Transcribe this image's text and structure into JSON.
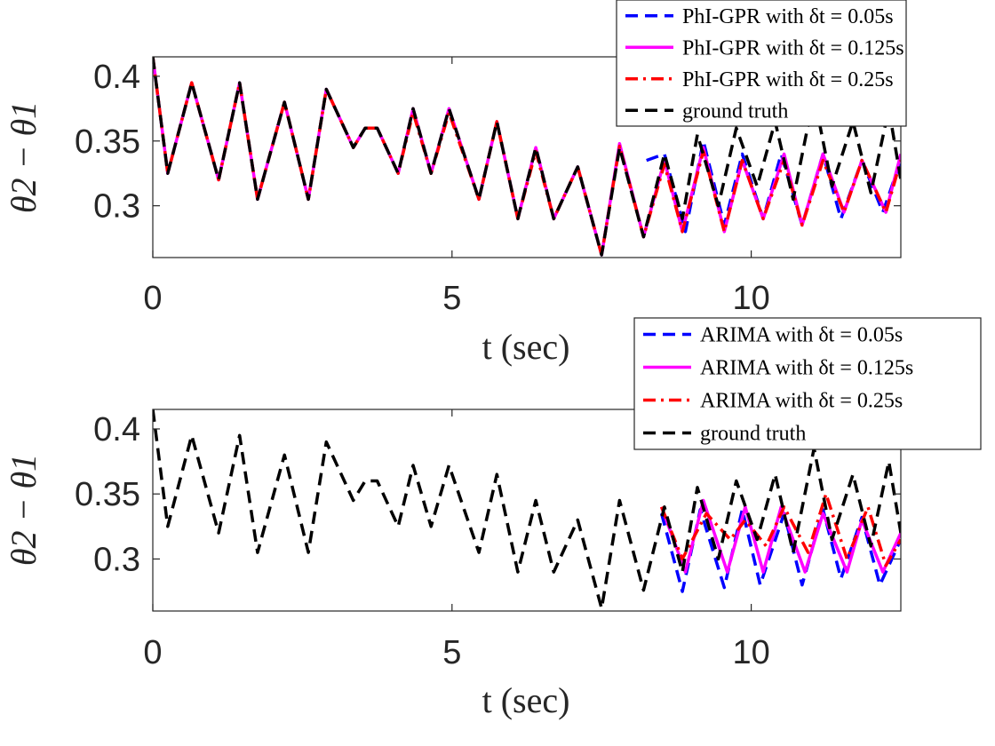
{
  "chart_data": [
    {
      "type": "line",
      "title": "",
      "xlabel": "t (sec)",
      "ylabel": "θ2 − θ1",
      "xlim": [
        0,
        12.5
      ],
      "ylim": [
        0.26,
        0.415
      ],
      "xticks": [
        0,
        5,
        10
      ],
      "yticks": [
        0.3,
        0.35,
        0.4
      ],
      "xtick_labels": [
        "0",
        "5",
        "10"
      ],
      "ytick_labels": [
        "0.3",
        "0.35",
        "0.4"
      ],
      "legend_position": "top-right",
      "series": [
        {
          "name": "PhI-GPR with δt = 0.05s",
          "color": "#0000ff",
          "style": "dashed",
          "x": [
            8.25,
            8.55,
            8.9,
            9.2,
            9.55,
            9.85,
            10.2,
            10.5,
            10.85,
            11.2,
            11.5,
            11.85,
            12.2,
            12.5
          ],
          "y": [
            0.335,
            0.34,
            0.28,
            0.35,
            0.285,
            0.34,
            0.29,
            0.34,
            0.285,
            0.34,
            0.29,
            0.335,
            0.295,
            0.335
          ]
        },
        {
          "name": "PhI-GPR with δt = 0.125s",
          "color": "#ff00ff",
          "style": "solid",
          "x": [
            0,
            0.25,
            0.65,
            1.1,
            1.45,
            1.75,
            2.2,
            2.6,
            2.9,
            3.35,
            3.55,
            3.75,
            4.1,
            4.35,
            4.65,
            4.95,
            5.45,
            5.75,
            6.1,
            6.4,
            6.7,
            7.1,
            7.5,
            7.8,
            8.2,
            8.55,
            8.85,
            9.2,
            9.55,
            9.85,
            10.2,
            10.55,
            10.85,
            11.2,
            11.55,
            11.85,
            12.25,
            12.5
          ],
          "y": [
            0.415,
            0.325,
            0.395,
            0.32,
            0.395,
            0.305,
            0.38,
            0.305,
            0.39,
            0.345,
            0.36,
            0.36,
            0.325,
            0.375,
            0.325,
            0.375,
            0.305,
            0.365,
            0.29,
            0.345,
            0.29,
            0.33,
            0.262,
            0.348,
            0.276,
            0.335,
            0.28,
            0.345,
            0.28,
            0.335,
            0.29,
            0.34,
            0.285,
            0.34,
            0.295,
            0.335,
            0.295,
            0.34
          ]
        },
        {
          "name": "PhI-GPR with δt = 0.25s",
          "color": "#ff0000",
          "style": "dashdot",
          "x": [
            0,
            0.25,
            0.65,
            1.1,
            1.45,
            1.75,
            2.2,
            2.6,
            2.9,
            3.35,
            3.55,
            3.75,
            4.1,
            4.35,
            4.65,
            4.95,
            5.45,
            5.75,
            6.1,
            6.4,
            6.7,
            7.1,
            7.5,
            7.8,
            8.2,
            8.55,
            8.85,
            9.2,
            9.55,
            9.85,
            10.2,
            10.55,
            10.85,
            11.2,
            11.55,
            11.85,
            12.25,
            12.5
          ],
          "y": [
            0.415,
            0.325,
            0.395,
            0.32,
            0.395,
            0.305,
            0.38,
            0.305,
            0.39,
            0.345,
            0.36,
            0.36,
            0.325,
            0.372,
            0.325,
            0.372,
            0.305,
            0.365,
            0.29,
            0.342,
            0.29,
            0.33,
            0.262,
            0.346,
            0.276,
            0.332,
            0.28,
            0.342,
            0.28,
            0.335,
            0.29,
            0.335,
            0.285,
            0.335,
            0.295,
            0.335,
            0.295,
            0.335
          ]
        },
        {
          "name": "ground truth",
          "color": "#000000",
          "style": "dashed",
          "x": [
            0,
            0.25,
            0.65,
            1.1,
            1.45,
            1.75,
            2.2,
            2.6,
            2.9,
            3.35,
            3.55,
            3.75,
            4.1,
            4.35,
            4.65,
            4.95,
            5.45,
            5.75,
            6.1,
            6.4,
            6.7,
            7.1,
            7.5,
            7.8,
            8.2,
            8.55,
            8.85,
            9.1,
            9.45,
            9.75,
            10.1,
            10.4,
            10.7,
            11.05,
            11.35,
            11.7,
            12.0,
            12.3,
            12.5
          ],
          "y": [
            0.415,
            0.325,
            0.395,
            0.32,
            0.395,
            0.305,
            0.38,
            0.305,
            0.39,
            0.345,
            0.36,
            0.36,
            0.325,
            0.375,
            0.325,
            0.375,
            0.305,
            0.365,
            0.29,
            0.345,
            0.29,
            0.33,
            0.262,
            0.345,
            0.276,
            0.34,
            0.29,
            0.355,
            0.3,
            0.36,
            0.315,
            0.365,
            0.305,
            0.385,
            0.315,
            0.365,
            0.31,
            0.375,
            0.32
          ]
        }
      ]
    },
    {
      "type": "line",
      "title": "",
      "xlabel": "t (sec)",
      "ylabel": "θ2 − θ1",
      "xlim": [
        0,
        12.5
      ],
      "ylim": [
        0.26,
        0.415
      ],
      "xticks": [
        0,
        5,
        10
      ],
      "yticks": [
        0.3,
        0.35,
        0.4
      ],
      "xtick_labels": [
        "0",
        "5",
        "10"
      ],
      "ytick_labels": [
        "0.3",
        "0.35",
        "0.4"
      ],
      "legend_position": "top-right",
      "series": [
        {
          "name": "ARIMA with δt = 0.05s",
          "color": "#0000ff",
          "style": "dashed",
          "x": [
            8.5,
            8.85,
            9.15,
            9.55,
            9.85,
            10.15,
            10.55,
            10.85,
            11.2,
            11.5,
            11.85,
            12.15,
            12.45,
            12.5
          ],
          "y": [
            0.335,
            0.275,
            0.338,
            0.278,
            0.338,
            0.28,
            0.335,
            0.28,
            0.338,
            0.285,
            0.332,
            0.28,
            0.31,
            0.315
          ]
        },
        {
          "name": "ARIMA with δt = 0.125s",
          "color": "#ff00ff",
          "style": "solid",
          "x": [
            8.5,
            8.9,
            9.2,
            9.6,
            9.9,
            10.2,
            10.5,
            10.9,
            11.2,
            11.6,
            11.85,
            12.2,
            12.5
          ],
          "y": [
            0.34,
            0.29,
            0.345,
            0.29,
            0.34,
            0.29,
            0.34,
            0.29,
            0.335,
            0.29,
            0.33,
            0.29,
            0.32
          ]
        },
        {
          "name": "ARIMA with δt = 0.25s",
          "color": "#ff0000",
          "style": "dashdot",
          "x": [
            8.5,
            8.85,
            9.25,
            9.65,
            9.9,
            10.25,
            10.55,
            10.95,
            11.25,
            11.6,
            11.95,
            12.25,
            12.5
          ],
          "y": [
            0.34,
            0.3,
            0.335,
            0.315,
            0.33,
            0.31,
            0.34,
            0.305,
            0.35,
            0.3,
            0.34,
            0.295,
            0.315
          ]
        },
        {
          "name": "ground truth",
          "color": "#000000",
          "style": "dashed",
          "x": [
            0,
            0.25,
            0.65,
            1.1,
            1.45,
            1.75,
            2.2,
            2.6,
            2.9,
            3.35,
            3.55,
            3.75,
            4.1,
            4.35,
            4.65,
            4.95,
            5.45,
            5.75,
            6.1,
            6.4,
            6.7,
            7.1,
            7.5,
            7.8,
            8.2,
            8.55,
            8.85,
            9.1,
            9.45,
            9.75,
            10.1,
            10.4,
            10.7,
            11.05,
            11.35,
            11.7,
            12.0,
            12.3,
            12.5
          ],
          "y": [
            0.415,
            0.325,
            0.395,
            0.32,
            0.395,
            0.305,
            0.38,
            0.305,
            0.39,
            0.345,
            0.36,
            0.36,
            0.325,
            0.372,
            0.325,
            0.372,
            0.305,
            0.365,
            0.29,
            0.345,
            0.29,
            0.33,
            0.262,
            0.345,
            0.276,
            0.34,
            0.29,
            0.355,
            0.3,
            0.36,
            0.315,
            0.365,
            0.305,
            0.385,
            0.315,
            0.365,
            0.31,
            0.375,
            0.32
          ]
        }
      ]
    }
  ]
}
